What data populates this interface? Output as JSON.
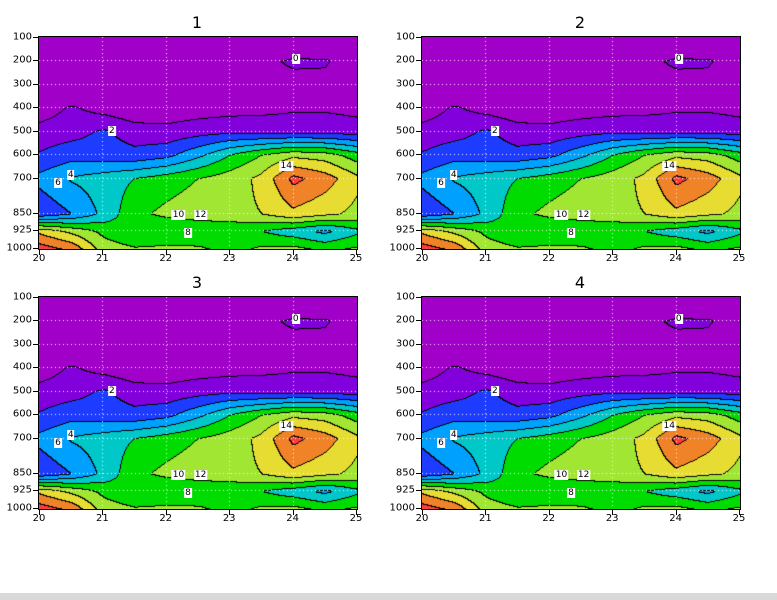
{
  "page": {
    "background": "#ffffff"
  },
  "chart_data": {
    "type": "heatmap",
    "subtype": "filled-contour-cross-section",
    "panels": [
      {
        "title": "1"
      },
      {
        "title": "2"
      },
      {
        "title": "3"
      },
      {
        "title": "4"
      }
    ],
    "x_range": [
      20,
      25
    ],
    "p_range": [
      100,
      1000
    ],
    "x_ticks": [
      20,
      21,
      22,
      23,
      24,
      25
    ],
    "p_ticks": [
      100,
      200,
      300,
      400,
      500,
      600,
      700,
      850,
      925,
      1000
    ],
    "x_grid": [
      21,
      22,
      23,
      24
    ],
    "p_grid": [
      200,
      300,
      400,
      500,
      600,
      700,
      850,
      925
    ],
    "x": [
      20,
      20.5,
      21,
      21.5,
      22,
      22.5,
      23,
      23.5,
      24,
      24.5,
      25
    ],
    "levels_hpa": [
      100,
      200,
      300,
      400,
      500,
      600,
      700,
      850,
      925,
      1000
    ],
    "values": [
      [
        -3,
        -3,
        -3,
        -3,
        -3,
        -3,
        -3,
        -3,
        -3,
        -3,
        -3
      ],
      [
        -3,
        -3,
        -3,
        -3,
        -2.6,
        -2.2,
        -1.6,
        -0.6,
        0.4,
        0.3,
        -1.6
      ],
      [
        -2.8,
        -2.8,
        -2.6,
        -2.4,
        -2.2,
        -2.0,
        -1.8,
        -1.2,
        -0.8,
        -0.8,
        -1.2
      ],
      [
        -1.2,
        0.3,
        -0.8,
        -1.6,
        -1.2,
        -1.0,
        -0.8,
        -0.6,
        -0.3,
        -0.3,
        -0.6
      ],
      [
        0.8,
        1.2,
        2.3,
        1.0,
        0.6,
        1.2,
        1.6,
        1.4,
        1.4,
        1.4,
        1.0
      ],
      [
        2.2,
        3.2,
        3.0,
        2.6,
        3.4,
        5.5,
        8.0,
        10.0,
        11.5,
        11.0,
        9.0
      ],
      [
        4.6,
        6.2,
        7.0,
        8.0,
        9.0,
        10.0,
        11.0,
        12.5,
        16.6,
        15.0,
        12.5
      ],
      [
        2.5,
        4.0,
        6.5,
        9.5,
        10.5,
        11.2,
        11.5,
        12.0,
        13.5,
        12.5,
        11.5
      ],
      [
        13.5,
        11.5,
        9.5,
        8.2,
        8.0,
        8.0,
        8.2,
        8.0,
        6.8,
        5.5,
        7.5
      ],
      [
        17.0,
        15.5,
        11.0,
        10.2,
        10.5,
        10.4,
        9.2,
        10.4,
        10.6,
        9.5,
        10.3
      ]
    ],
    "contour_levels": [
      0,
      2,
      4,
      6,
      8,
      10,
      12,
      14,
      16
    ],
    "contour_interval": 2,
    "band_colors": [
      "#A000C8",
      "#8200DC",
      "#1E3CFF",
      "#00A0FF",
      "#00C8C8",
      "#00DC00",
      "#A0E632",
      "#E6DC32",
      "#F08228",
      "#FA3C3C"
    ],
    "contour_line_color": "#000000",
    "grid_line_color": "rgba(255,255,255,0.9)",
    "contour_labels": [
      {
        "text": "0",
        "x": 24.05,
        "p": 193
      },
      {
        "text": "2",
        "x": 21.15,
        "p": 503
      },
      {
        "text": "4",
        "x": 20.5,
        "p": 690
      },
      {
        "text": "6",
        "x": 20.3,
        "p": 723
      },
      {
        "text": "14",
        "x": 23.9,
        "p": 652
      },
      {
        "text": "10",
        "x": 22.2,
        "p": 861
      },
      {
        "text": "12",
        "x": 22.55,
        "p": 861
      },
      {
        "text": "8",
        "x": 22.35,
        "p": 937
      }
    ]
  }
}
